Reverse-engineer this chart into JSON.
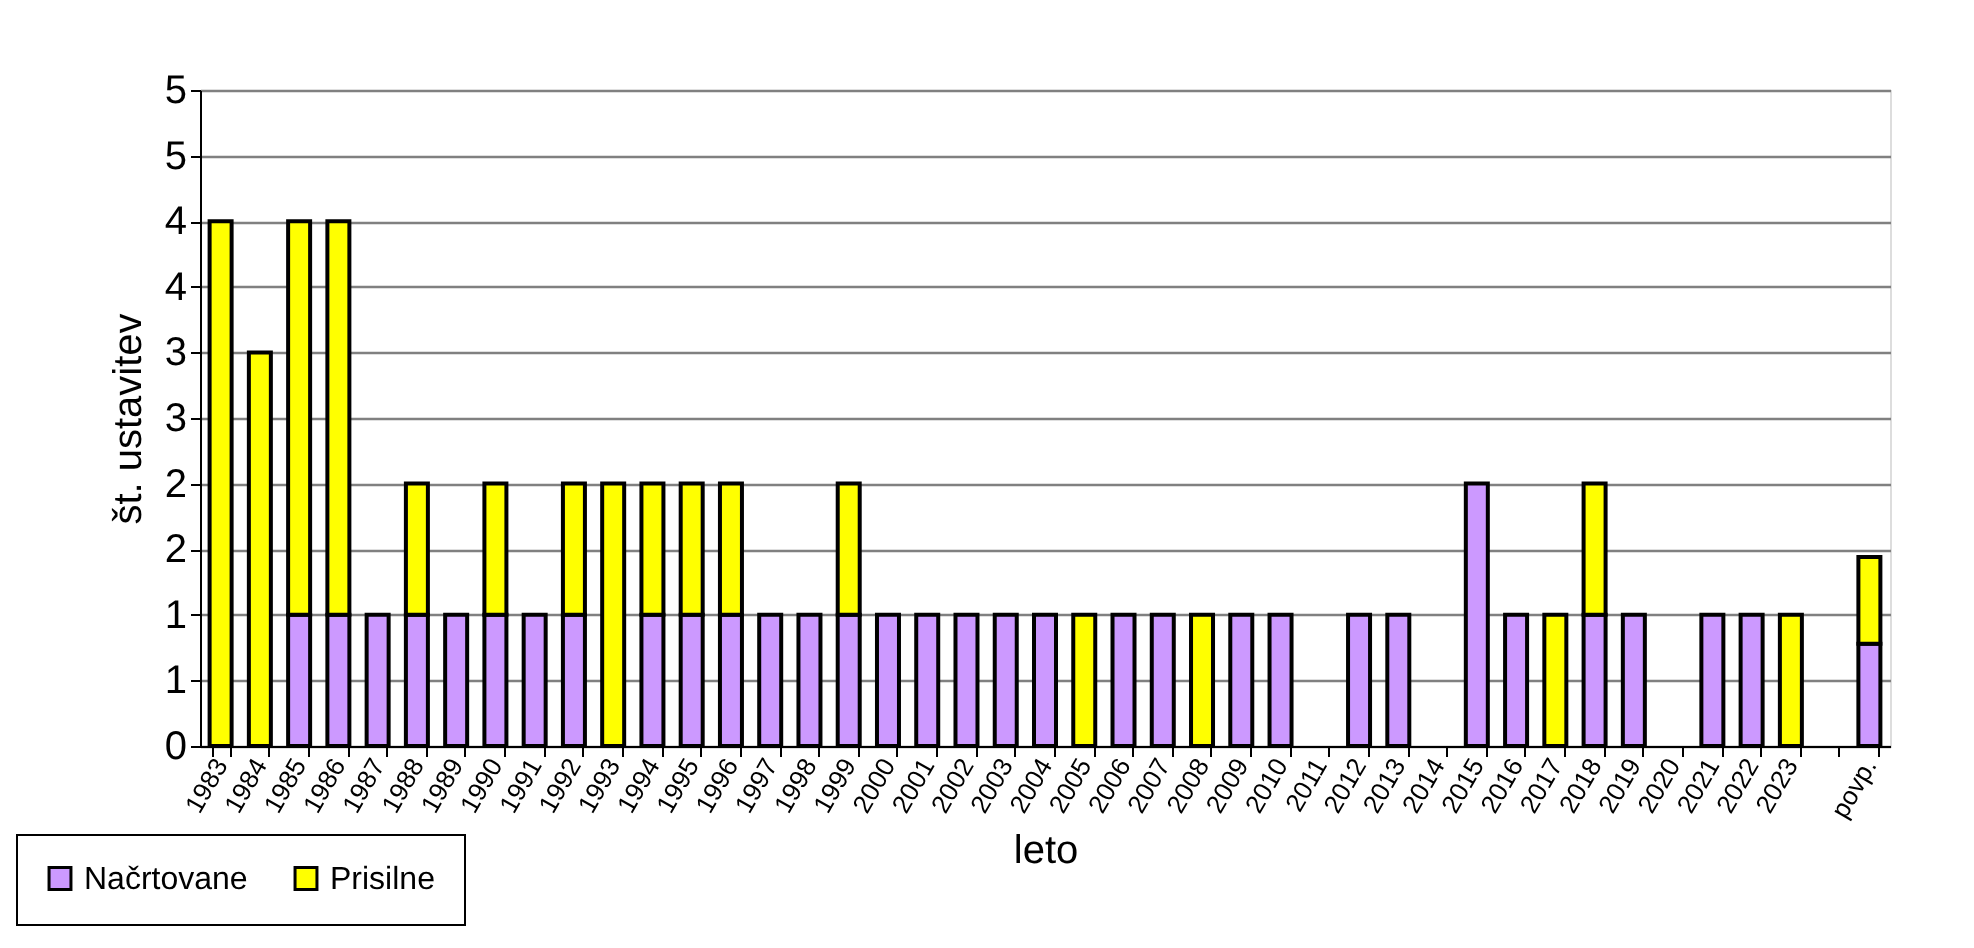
{
  "chart_data": {
    "type": "bar",
    "stacked": true,
    "xlabel": "leto",
    "ylabel": "št. ustavitev",
    "categories": [
      "1983",
      "1984",
      "1985",
      "1986",
      "1987",
      "1988",
      "1989",
      "1990",
      "1991",
      "1992",
      "1993",
      "1994",
      "1995",
      "1996",
      "1997",
      "1998",
      "1999",
      "2000",
      "2001",
      "2002",
      "2003",
      "2004",
      "2005",
      "2006",
      "2007",
      "2008",
      "2009",
      "2010",
      "2011",
      "2012",
      "2013",
      "2014",
      "2015",
      "2016",
      "2017",
      "2018",
      "2019",
      "2020",
      "2021",
      "2022",
      "2023",
      null,
      "povp."
    ],
    "series": [
      {
        "name": "Načrtovane",
        "color": "#cc99ff",
        "values": [
          0,
          0,
          1,
          1,
          1,
          1,
          1,
          1,
          1,
          1,
          0,
          1,
          1,
          1,
          1,
          1,
          1,
          1,
          1,
          1,
          1,
          1,
          0,
          1,
          1,
          0,
          1,
          1,
          0,
          1,
          1,
          0,
          2,
          1,
          0,
          1,
          1,
          0,
          1,
          1,
          0,
          null,
          0.78
        ]
      },
      {
        "name": "Prisilne",
        "color": "#ffff00",
        "values": [
          4,
          3,
          3,
          3,
          0,
          1,
          0,
          1,
          0,
          1,
          2,
          1,
          1,
          1,
          0,
          0,
          1,
          0,
          0,
          0,
          0,
          0,
          1,
          0,
          0,
          1,
          0,
          0,
          0,
          0,
          0,
          0,
          0,
          0,
          1,
          1,
          0,
          0,
          0,
          0,
          1,
          null,
          0.66
        ]
      }
    ],
    "ylim": [
      0,
      5
    ],
    "yticks": [
      0,
      {
        "value": 0.5,
        "label": "1"
      },
      1,
      {
        "value": 1.5,
        "label": "2"
      },
      2,
      {
        "value": 2.5,
        "label": "3"
      },
      3,
      {
        "value": 3.5,
        "label": "4"
      },
      4,
      {
        "value": 4.5,
        "label": "5"
      },
      5
    ],
    "grid": "y",
    "legend": "bottom left"
  }
}
